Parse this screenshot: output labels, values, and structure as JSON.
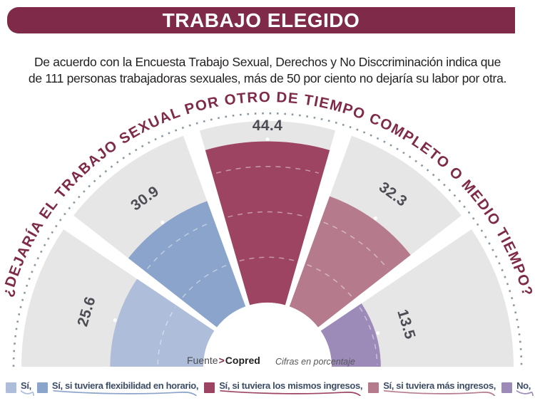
{
  "header": {
    "title": "TRABAJO ELEGIDO",
    "intro": "De acuerdo con la Encuesta Trabajo Sexual, Derechos y No Disccriminación indica que\nde 111 personas trabajadoras sexuales, más de 50 por ciento no dejaría su labor por otra."
  },
  "chart_data": {
    "type": "polar_fan_bar",
    "question": "¿DEJARÍA EL TRABAJO SEXUAL POR OTRO DE TIEMPO COMPLETO O MEDIO TIEMPO?",
    "unit_note": "Cifras en porcentaje",
    "source": {
      "prefix": "Fuente",
      "sep": ">",
      "name": "Copred"
    },
    "max_value": 50,
    "gridline_values": [
      12.5,
      25,
      37.5
    ],
    "segments": [
      {
        "label": "Sí,",
        "value": 25.6,
        "color": "#aebdda"
      },
      {
        "label": "Sí, si tuviera flexibilidad en horario,",
        "value": 30.9,
        "color": "#8ba4cb"
      },
      {
        "label": "Sí, si tuviera los mismos ingresos,",
        "value": 44.4,
        "color": "#9c4462"
      },
      {
        "label": "Sí, si tuviera más ingresos,",
        "value": 32.3,
        "color": "#b57b8c"
      },
      {
        "label": "No,",
        "value": 13.5,
        "color": "#9c8bb9"
      }
    ]
  },
  "colors": {
    "accent_maroon": "#7e2a48",
    "sector_background": "#e7e6e6",
    "value_label": "#4c4c54",
    "dotted_arc": "#8a98a3",
    "legend_text": "#3d4d66"
  }
}
